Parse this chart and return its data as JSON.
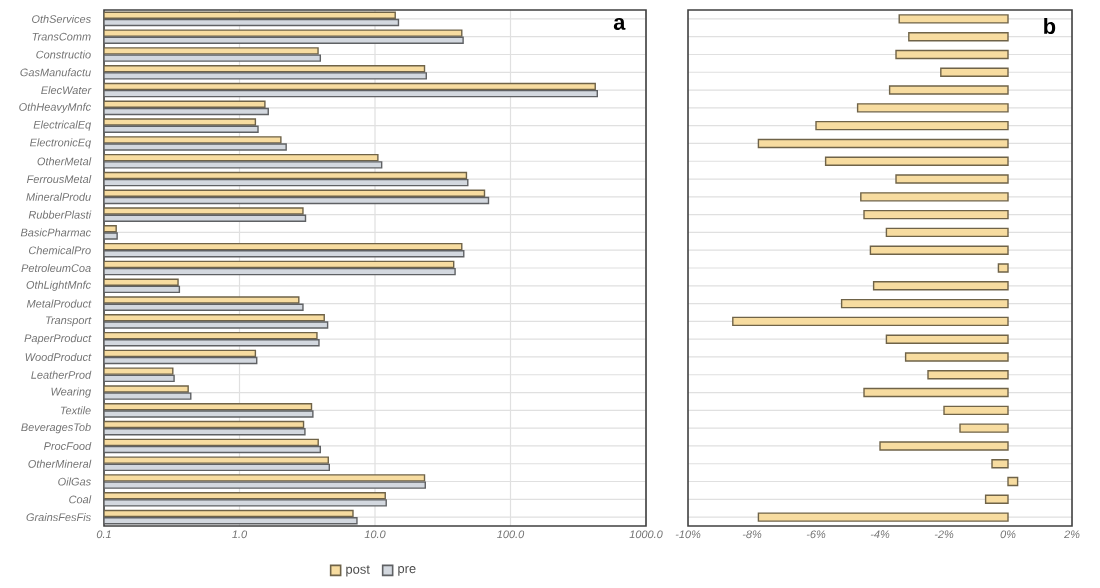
{
  "chart_data": [
    {
      "type": "bar",
      "orientation": "horizontal",
      "title": "a",
      "log": "x",
      "grid": true,
      "legend": "bottom",
      "categories": [
        "OthServices",
        "TransComm",
        "Constructio",
        "GasManufactu",
        "ElecWater",
        "OthHeavyMnfc",
        "ElectricalEq",
        "ElectronicEq",
        "OtherMetal",
        "FerrousMetal",
        "MineralProdu",
        "RubberPlasti",
        "BasicPharmac",
        "ChemicalPro",
        "PetroleumCoa",
        "OthLightMnfc",
        "MetalProduct",
        "Transport",
        "PaperProduct",
        "WoodProduct",
        "LeatherProd",
        "Wearing",
        "Textile",
        "BeveragesTob",
        "ProcFood",
        "OtherMineral",
        "OilGas",
        "Coal",
        "GrainsFesFis"
      ],
      "series": [
        {
          "name": "post",
          "color": "#f7dca0",
          "values": [
            14.1,
            43.7,
            3.8,
            23.2,
            422,
            1.54,
            1.31,
            2.02,
            10.5,
            47.3,
            64.3,
            2.94,
            0.123,
            43.7,
            38.1,
            0.352,
            2.74,
            4.22,
            3.73,
            1.31,
            0.322,
            0.418,
            3.4,
            2.97,
            3.81,
            4.52,
            23.2,
            11.9,
            6.88
          ]
        },
        {
          "name": "pre",
          "color": "#d3d8df",
          "values": [
            14.9,
            44.7,
            3.95,
            23.9,
            437,
            1.63,
            1.37,
            2.21,
            11.2,
            48.4,
            68.8,
            3.07,
            0.125,
            45.2,
            39.0,
            0.36,
            2.94,
            4.47,
            3.86,
            1.34,
            0.329,
            0.437,
            3.48,
            3.04,
            3.95,
            4.6,
            23.5,
            12.1,
            7.36
          ]
        }
      ],
      "xlim": [
        0.1,
        1000
      ],
      "xticks": [
        {
          "value": 0.1,
          "label": "0.1"
        },
        {
          "value": 1,
          "label": "1.0"
        },
        {
          "value": 10,
          "label": "10.0"
        },
        {
          "value": 100,
          "label": "100.0"
        },
        {
          "value": 1000,
          "label": "1000.0"
        }
      ]
    },
    {
      "type": "bar",
      "orientation": "horizontal",
      "title": "b",
      "grid": "y",
      "tick_labels": "x",
      "color": "#f7dca0",
      "categories": [
        null,
        null,
        null,
        null,
        null,
        null,
        null,
        null,
        null,
        null,
        null,
        null,
        null,
        null,
        null,
        null,
        null,
        null,
        null,
        null,
        null,
        null,
        null,
        null,
        null,
        null,
        null,
        null,
        null
      ],
      "values": [
        -3.4,
        -3.1,
        -3.5,
        -2.1,
        -3.7,
        -4.7,
        -6.0,
        -7.8,
        -5.7,
        -3.5,
        -4.6,
        -4.5,
        -3.8,
        -4.3,
        -0.3,
        -4.2,
        -5.2,
        -8.6,
        -3.8,
        -3.2,
        -2.5,
        -4.5,
        -2.0,
        -1.5,
        -4.0,
        -0.5,
        0.3,
        -0.7,
        -7.8
      ],
      "xlim": [
        -10,
        2
      ],
      "xticks": [
        {
          "value": -10,
          "label": "-10%"
        },
        {
          "value": -8,
          "label": "-8%"
        },
        {
          "value": -6,
          "label": "-6%"
        },
        {
          "value": -4,
          "label": "-4%"
        },
        {
          "value": -2,
          "label": "-2%"
        },
        {
          "value": 0,
          "label": "0%"
        },
        {
          "value": 2,
          "label": "2%"
        }
      ]
    }
  ]
}
